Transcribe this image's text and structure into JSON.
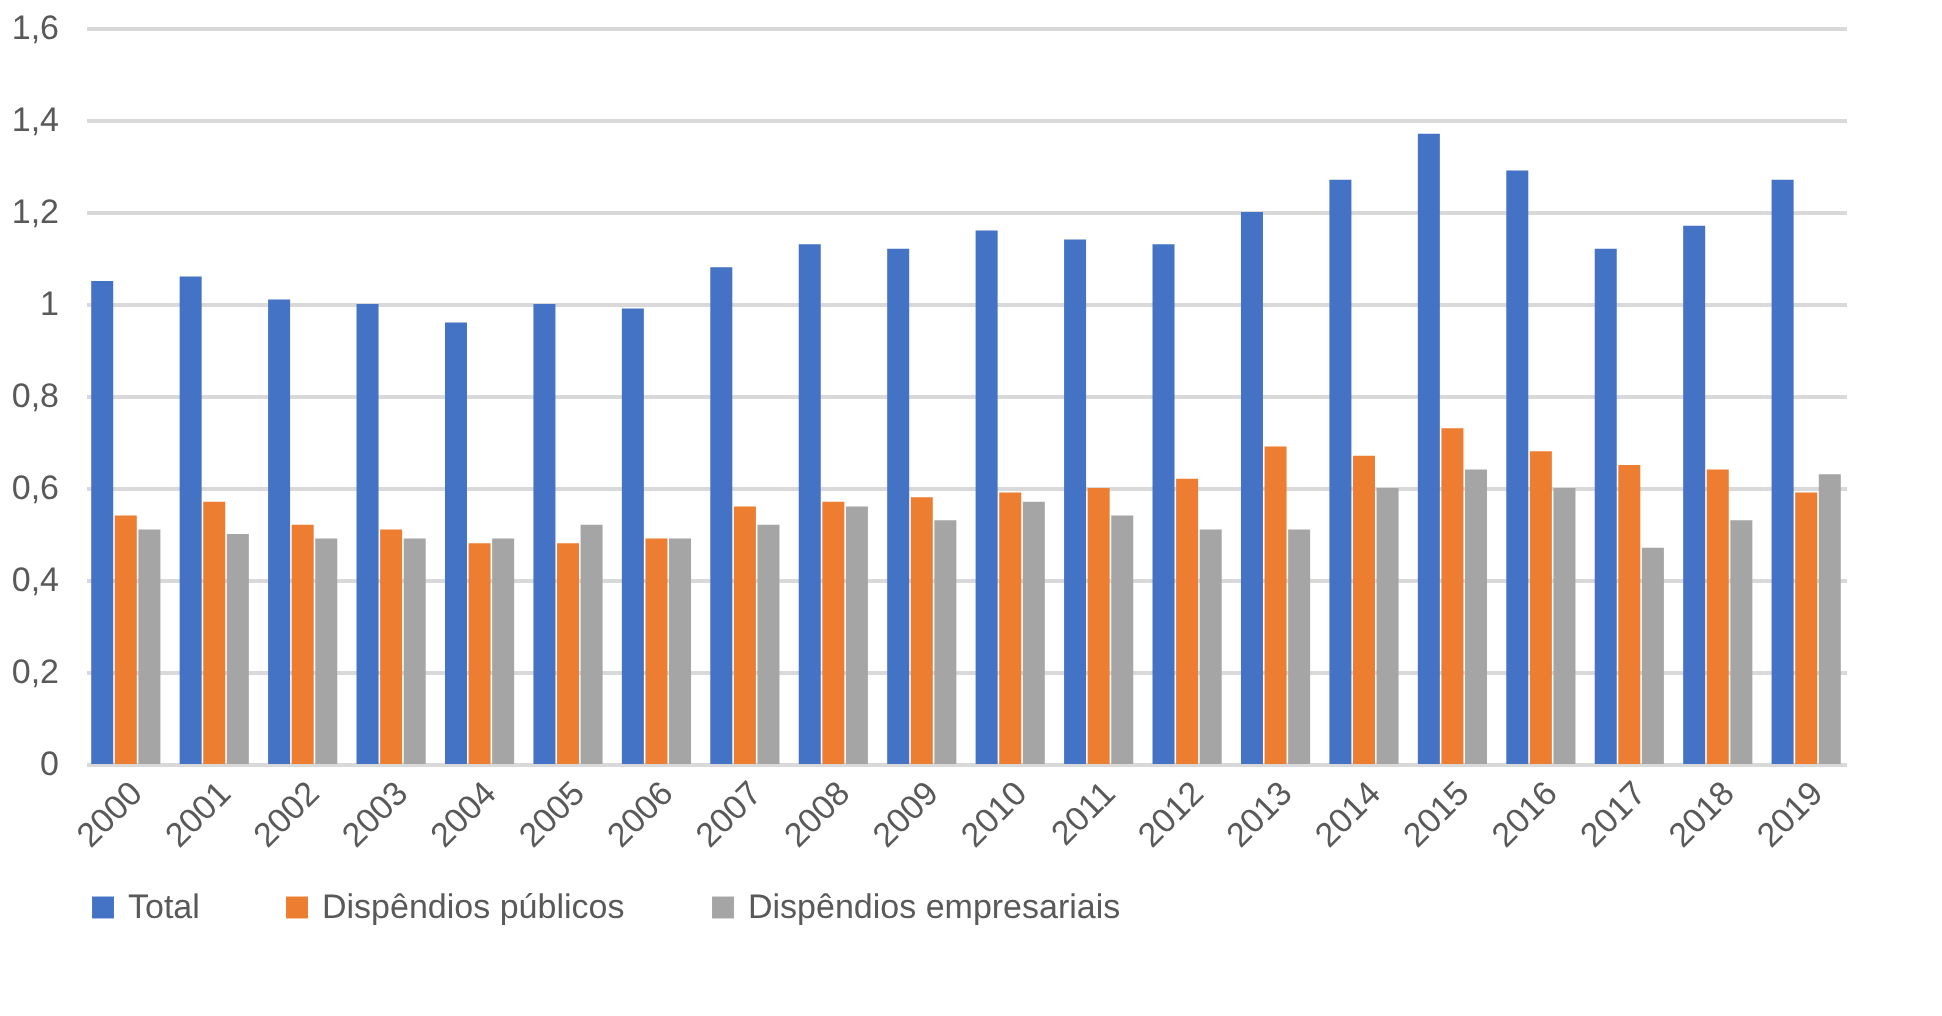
{
  "chart_data": {
    "type": "bar",
    "categories": [
      "2000",
      "2001",
      "2002",
      "2003",
      "2004",
      "2005",
      "2006",
      "2007",
      "2008",
      "2009",
      "2010",
      "2011",
      "2012",
      "2013",
      "2014",
      "2015",
      "2016",
      "2017",
      "2018",
      "2019"
    ],
    "series": [
      {
        "name": "Total",
        "color": "#4472c4",
        "values": [
          1.05,
          1.06,
          1.01,
          1.0,
          0.96,
          1.0,
          0.99,
          1.08,
          1.13,
          1.12,
          1.16,
          1.14,
          1.13,
          1.2,
          1.27,
          1.37,
          1.29,
          1.12,
          1.17,
          1.27
        ]
      },
      {
        "name": "Dispêndios públicos",
        "color": "#ed7d31",
        "values": [
          0.54,
          0.57,
          0.52,
          0.51,
          0.48,
          0.48,
          0.49,
          0.56,
          0.57,
          0.58,
          0.59,
          0.6,
          0.62,
          0.69,
          0.67,
          0.73,
          0.68,
          0.65,
          0.64,
          0.59
        ]
      },
      {
        "name": "Dispêndios empresariais",
        "color": "#a5a5a5",
        "values": [
          0.51,
          0.5,
          0.49,
          0.49,
          0.49,
          0.52,
          0.49,
          0.52,
          0.56,
          0.53,
          0.57,
          0.54,
          0.51,
          0.51,
          0.6,
          0.64,
          0.6,
          0.47,
          0.53,
          0.63
        ]
      }
    ],
    "ylim": [
      0,
      1.6
    ],
    "yticks": [
      0,
      {
        "value": 0.2,
        "label": "0,2"
      },
      {
        "value": 0.4,
        "label": "0,4"
      },
      {
        "value": 0.6,
        "label": "0,6"
      },
      {
        "value": 0.8,
        "label": "0,8"
      },
      1,
      {
        "value": 1.2,
        "label": "1,2"
      },
      {
        "value": 1.4,
        "label": "1,4"
      },
      {
        "value": 1.6,
        "label": "1,6"
      }
    ],
    "grid": "y",
    "legend": "bottom"
  }
}
